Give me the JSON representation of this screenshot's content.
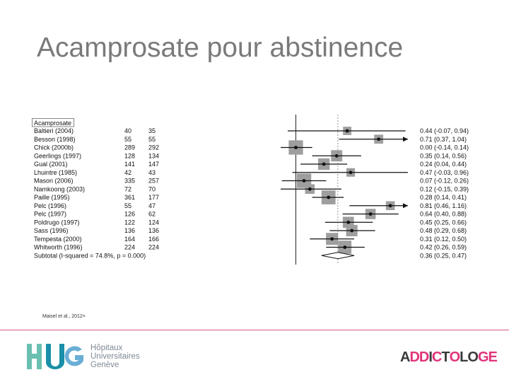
{
  "slide": {
    "title": "Acamprosate pour abstinence",
    "citation": "Maisel et al., 2012×"
  },
  "footer": {
    "hug_letters": "HUG",
    "hug_text": [
      "Hôpitaux",
      "Universitaires",
      "Genève"
    ],
    "addictologie": [
      {
        "t": "A",
        "c": "#3a3a3a"
      },
      {
        "t": "D",
        "c": "#e2337a"
      },
      {
        "t": "D",
        "c": "#e2337a"
      },
      {
        "t": "I",
        "c": "#3a3a3a"
      },
      {
        "t": "C",
        "c": "#e2337a"
      },
      {
        "t": "T",
        "c": "#3a3a3a"
      },
      {
        "t": "O",
        "c": "#e2337a"
      },
      {
        "t": "L",
        "c": "#3a3a3a"
      },
      {
        "t": "O",
        "c": "#3a3a3a"
      },
      {
        "t": "G",
        "c": "#e2337a"
      },
      {
        "t": "E",
        "c": "#e2337a"
      }
    ]
  },
  "chart_data": {
    "type": "forest",
    "group_label": "Acamprosate",
    "x_scale": "relative",
    "x_range": [
      -0.2,
      1.1
    ],
    "reference_line_x": 0,
    "studies": [
      {
        "study": "Baltieri (2004)",
        "n1": 40,
        "n2": 35,
        "est": 0.44,
        "lo": -0.07,
        "hi": 0.94,
        "ci_text": "0.44 (-0.07, 0.94)",
        "arrow": false
      },
      {
        "study": "Besson (1998)",
        "n1": 55,
        "n2": 55,
        "est": 0.71,
        "lo": 0.37,
        "hi": 1.04,
        "ci_text": "0.71 (0.37, 1.04)",
        "arrow": true
      },
      {
        "study": "Chick (2000b)",
        "n1": 289,
        "n2": 292,
        "est": 0.0,
        "lo": -0.14,
        "hi": 0.14,
        "ci_text": "0.00 (-0.14, 0.14)",
        "arrow": false
      },
      {
        "study": "Geerlings (1997)",
        "n1": 128,
        "n2": 134,
        "est": 0.35,
        "lo": 0.14,
        "hi": 0.56,
        "ci_text": "0.35 (0.14, 0.56)",
        "arrow": false
      },
      {
        "study": "Gual (2001)",
        "n1": 141,
        "n2": 147,
        "est": 0.24,
        "lo": 0.04,
        "hi": 0.44,
        "ci_text": "0.24 (0.04, 0.44)",
        "arrow": false
      },
      {
        "study": "Lhuintre (1985)",
        "n1": 42,
        "n2": 43,
        "est": 0.47,
        "lo": -0.03,
        "hi": 0.96,
        "ci_text": "0.47 (-0.03, 0.96)",
        "arrow": false
      },
      {
        "study": "Mason (2006)",
        "n1": 335,
        "n2": 257,
        "est": 0.07,
        "lo": -0.12,
        "hi": 0.26,
        "ci_text": "0.07 (-0.12, 0.26)",
        "arrow": false
      },
      {
        "study": "Namkoong (2003)",
        "n1": 72,
        "n2": 70,
        "est": 0.12,
        "lo": -0.15,
        "hi": 0.39,
        "ci_text": "0.12 (-0.15, 0.39)",
        "arrow": false
      },
      {
        "study": "Paille (1995)",
        "n1": 361,
        "n2": 177,
        "est": 0.28,
        "lo": 0.14,
        "hi": 0.41,
        "ci_text": "0.28 (0.14, 0.41)",
        "arrow": false
      },
      {
        "study": "Pelc (1996)",
        "n1": 55,
        "n2": 47,
        "est": 0.81,
        "lo": 0.46,
        "hi": 1.16,
        "ci_text": "0.81 (0.46, 1.16)",
        "arrow": true
      },
      {
        "study": "Pelc (1997)",
        "n1": 126,
        "n2": 62,
        "est": 0.64,
        "lo": 0.4,
        "hi": 0.88,
        "ci_text": "0.64 (0.40, 0.88)",
        "arrow": false
      },
      {
        "study": "Poldrugo (1997)",
        "n1": 122,
        "n2": 124,
        "est": 0.45,
        "lo": 0.25,
        "hi": 0.66,
        "ci_text": "0.45 (0.25, 0.66)",
        "arrow": false
      },
      {
        "study": "Sass (1996)",
        "n1": 136,
        "n2": 136,
        "est": 0.48,
        "lo": 0.29,
        "hi": 0.68,
        "ci_text": "0.48 (0.29, 0.68)",
        "arrow": false
      },
      {
        "study": "Tempesta (2000)",
        "n1": 164,
        "n2": 166,
        "est": 0.31,
        "lo": 0.12,
        "hi": 0.5,
        "ci_text": "0.31 (0.12, 0.50)",
        "arrow": false
      },
      {
        "study": "Whitworth (1996)",
        "n1": 224,
        "n2": 224,
        "est": 0.42,
        "lo": 0.26,
        "hi": 0.59,
        "ci_text": "0.42 (0.26, 0.59)",
        "arrow": false
      }
    ],
    "subtotal": {
      "label": "Subtotal  (I-squared = 74.8%, p = 0.000)",
      "est": 0.36,
      "lo": 0.25,
      "hi": 0.47,
      "ci_text": "0.36 (0.25, 0.47)"
    }
  }
}
